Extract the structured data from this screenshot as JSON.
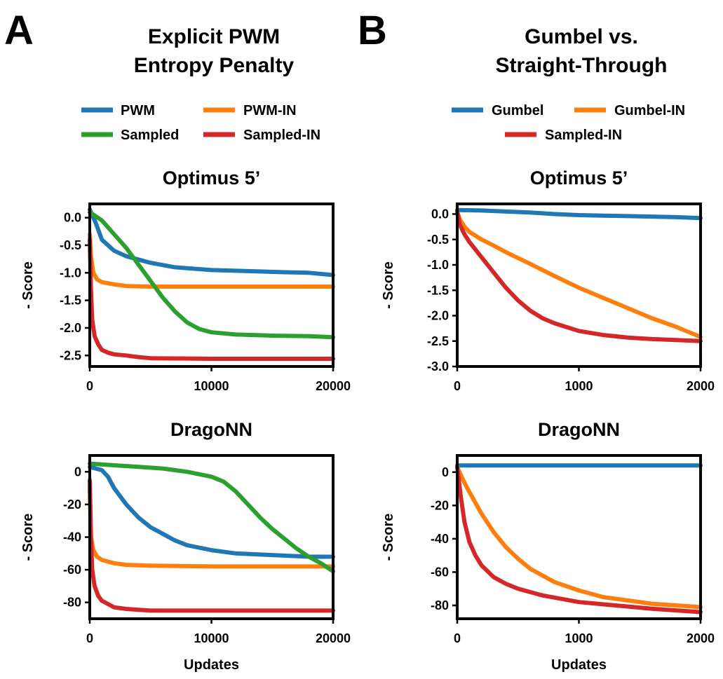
{
  "panels": [
    {
      "letter": "A",
      "title_lines": [
        "Explicit PWM",
        "Entropy Penalty"
      ],
      "legend": [
        {
          "label": "PWM",
          "color": "#1f77b4"
        },
        {
          "label": "PWM-IN",
          "color": "#ff7f0e"
        },
        {
          "label": "Sampled",
          "color": "#2ca02c"
        },
        {
          "label": "Sampled-IN",
          "color": "#d62728"
        }
      ]
    },
    {
      "letter": "B",
      "title_lines": [
        "Gumbel vs.",
        "Straight-Through"
      ],
      "legend": [
        {
          "label": "Gumbel",
          "color": "#1f77b4"
        },
        {
          "label": "Gumbel-IN",
          "color": "#ff7f0e"
        },
        {
          "label": "Sampled-IN",
          "color": "#d62728"
        }
      ]
    }
  ],
  "chart_data": [
    {
      "type": "line",
      "title": "Optimus 5’",
      "ylabel": "- Score",
      "xlabel": "",
      "xlim": [
        0,
        20000
      ],
      "ylim": [
        -2.7,
        0.25
      ],
      "xticks": [
        0,
        10000,
        20000
      ],
      "yticks": [
        0.0,
        -0.5,
        -1.0,
        -1.5,
        -2.0,
        -2.5
      ],
      "ytick_labels": [
        "0.0",
        "-0.5",
        "-1.0",
        "-1.5",
        "-2.0",
        "-2.5"
      ],
      "series": [
        {
          "name": "PWM",
          "color": "#1f77b4",
          "x": [
            0,
            500,
            1000,
            2000,
            3000,
            5000,
            7000,
            10000,
            13000,
            16000,
            18000,
            20000
          ],
          "y": [
            0.15,
            -0.1,
            -0.4,
            -0.6,
            -0.7,
            -0.82,
            -0.9,
            -0.95,
            -0.97,
            -0.99,
            -1.0,
            -1.04
          ]
        },
        {
          "name": "PWM-IN",
          "color": "#ff7f0e",
          "x": [
            0,
            100,
            300,
            600,
            1000,
            2000,
            3000,
            5000,
            10000,
            15000,
            20000
          ],
          "y": [
            -0.3,
            -0.7,
            -1.0,
            -1.12,
            -1.17,
            -1.21,
            -1.24,
            -1.25,
            -1.25,
            -1.25,
            -1.25
          ]
        },
        {
          "name": "Sampled",
          "color": "#2ca02c",
          "x": [
            0,
            1000,
            2000,
            3000,
            4000,
            5000,
            6000,
            7000,
            8000,
            9000,
            10000,
            12000,
            15000,
            18000,
            20000
          ],
          "y": [
            0.1,
            -0.05,
            -0.3,
            -0.55,
            -0.85,
            -1.15,
            -1.45,
            -1.7,
            -1.9,
            -2.02,
            -2.08,
            -2.12,
            -2.14,
            -2.15,
            -2.17
          ]
        },
        {
          "name": "Sampled-IN",
          "color": "#d62728",
          "x": [
            0,
            100,
            200,
            400,
            700,
            1000,
            1500,
            2000,
            3000,
            4000,
            5000,
            10000,
            15000,
            20000
          ],
          "y": [
            -0.4,
            -1.3,
            -1.85,
            -2.15,
            -2.3,
            -2.4,
            -2.45,
            -2.48,
            -2.5,
            -2.53,
            -2.55,
            -2.56,
            -2.56,
            -2.56
          ]
        }
      ]
    },
    {
      "type": "line",
      "title": "Optimus 5’",
      "ylabel": "- Score",
      "xlabel": "",
      "xlim": [
        0,
        2000
      ],
      "ylim": [
        -3.0,
        0.2
      ],
      "xticks": [
        0,
        1000,
        2000
      ],
      "yticks": [
        0.0,
        -0.5,
        -1.0,
        -1.5,
        -2.0,
        -2.5,
        -3.0
      ],
      "ytick_labels": [
        "0.0",
        "-0.5",
        "-1.0",
        "-1.5",
        "-2.0",
        "-2.5",
        "-3.0"
      ],
      "series": [
        {
          "name": "Gumbel",
          "color": "#1f77b4",
          "x": [
            0,
            200,
            400,
            600,
            800,
            1000,
            1200,
            1400,
            1600,
            1800,
            2000
          ],
          "y": [
            0.08,
            0.07,
            0.05,
            0.03,
            0.0,
            -0.02,
            -0.03,
            -0.04,
            -0.05,
            -0.06,
            -0.08
          ]
        },
        {
          "name": "Gumbel-IN",
          "color": "#ff7f0e",
          "x": [
            0,
            20,
            60,
            100,
            200,
            300,
            400,
            600,
            800,
            1000,
            1200,
            1400,
            1600,
            1800,
            2000
          ],
          "y": [
            0.05,
            -0.1,
            -0.25,
            -0.35,
            -0.5,
            -0.62,
            -0.75,
            -0.98,
            -1.22,
            -1.45,
            -1.65,
            -1.85,
            -2.05,
            -2.22,
            -2.42
          ]
        },
        {
          "name": "Sampled-IN",
          "color": "#d62728",
          "x": [
            0,
            20,
            60,
            100,
            200,
            300,
            400,
            500,
            600,
            700,
            800,
            1000,
            1200,
            1400,
            1600,
            1800,
            2000
          ],
          "y": [
            0.05,
            -0.2,
            -0.4,
            -0.55,
            -0.85,
            -1.15,
            -1.45,
            -1.7,
            -1.9,
            -2.05,
            -2.15,
            -2.3,
            -2.38,
            -2.43,
            -2.46,
            -2.48,
            -2.5
          ]
        }
      ]
    },
    {
      "type": "line",
      "title": "DragoNN",
      "ylabel": "- Score",
      "xlabel": "Updates",
      "xlim": [
        0,
        20000
      ],
      "ylim": [
        -90,
        10
      ],
      "xticks": [
        0,
        10000,
        20000
      ],
      "yticks": [
        0,
        -20,
        -40,
        -60,
        -80
      ],
      "ytick_labels": [
        "0",
        "-20",
        "-40",
        "-60",
        "-80"
      ],
      "series": [
        {
          "name": "PWM",
          "color": "#1f77b4",
          "x": [
            0,
            1000,
            1500,
            2000,
            3000,
            4000,
            5000,
            6000,
            7000,
            8000,
            10000,
            12000,
            15000,
            18000,
            20000
          ],
          "y": [
            3,
            1,
            -3,
            -10,
            -20,
            -28,
            -34,
            -38,
            -42,
            -45,
            -48,
            -50,
            -51,
            -52,
            -52
          ]
        },
        {
          "name": "PWM-IN",
          "color": "#ff7f0e",
          "x": [
            0,
            100,
            300,
            600,
            1000,
            2000,
            3000,
            5000,
            10000,
            15000,
            20000
          ],
          "y": [
            -10,
            -40,
            -48,
            -52,
            -54,
            -56,
            -57,
            -57.5,
            -58,
            -58,
            -58
          ]
        },
        {
          "name": "Sampled",
          "color": "#2ca02c",
          "x": [
            0,
            2000,
            4000,
            6000,
            8000,
            10000,
            11000,
            12000,
            13000,
            14000,
            15000,
            16000,
            17000,
            18000,
            19000,
            20000
          ],
          "y": [
            5,
            4,
            3,
            2,
            0,
            -3,
            -6,
            -12,
            -20,
            -28,
            -35,
            -41,
            -47,
            -52,
            -56,
            -61
          ]
        },
        {
          "name": "Sampled-IN",
          "color": "#d62728",
          "x": [
            0,
            100,
            200,
            400,
            700,
            1000,
            1500,
            2000,
            3000,
            5000,
            10000,
            15000,
            20000
          ],
          "y": [
            -5,
            -40,
            -60,
            -70,
            -76,
            -79,
            -81,
            -83,
            -84,
            -85,
            -85,
            -85,
            -85
          ]
        }
      ]
    },
    {
      "type": "line",
      "title": "DragoNN",
      "ylabel": "- Score",
      "xlabel": "Updates",
      "xlim": [
        0,
        2000
      ],
      "ylim": [
        -88,
        10
      ],
      "xticks": [
        0,
        1000,
        2000
      ],
      "yticks": [
        0,
        -20,
        -40,
        -60,
        -80
      ],
      "ytick_labels": [
        "0",
        "-20",
        "-40",
        "-60",
        "-80"
      ],
      "series": [
        {
          "name": "Gumbel",
          "color": "#1f77b4",
          "x": [
            0,
            500,
            1000,
            1500,
            2000
          ],
          "y": [
            4,
            4,
            4,
            4,
            4
          ]
        },
        {
          "name": "Gumbel-IN",
          "color": "#ff7f0e",
          "x": [
            0,
            50,
            100,
            200,
            300,
            400,
            500,
            600,
            800,
            1000,
            1200,
            1400,
            1600,
            1800,
            2000
          ],
          "y": [
            3,
            -5,
            -12,
            -25,
            -36,
            -45,
            -52,
            -58,
            -66,
            -71,
            -75,
            -77,
            -79,
            -80,
            -81
          ]
        },
        {
          "name": "Sampled-IN",
          "color": "#d62728",
          "x": [
            0,
            30,
            60,
            100,
            150,
            200,
            300,
            400,
            500,
            700,
            1000,
            1300,
            1600,
            2000
          ],
          "y": [
            3,
            -15,
            -30,
            -42,
            -50,
            -56,
            -63,
            -67,
            -70,
            -74,
            -78,
            -80,
            -82,
            -84
          ]
        }
      ]
    }
  ]
}
